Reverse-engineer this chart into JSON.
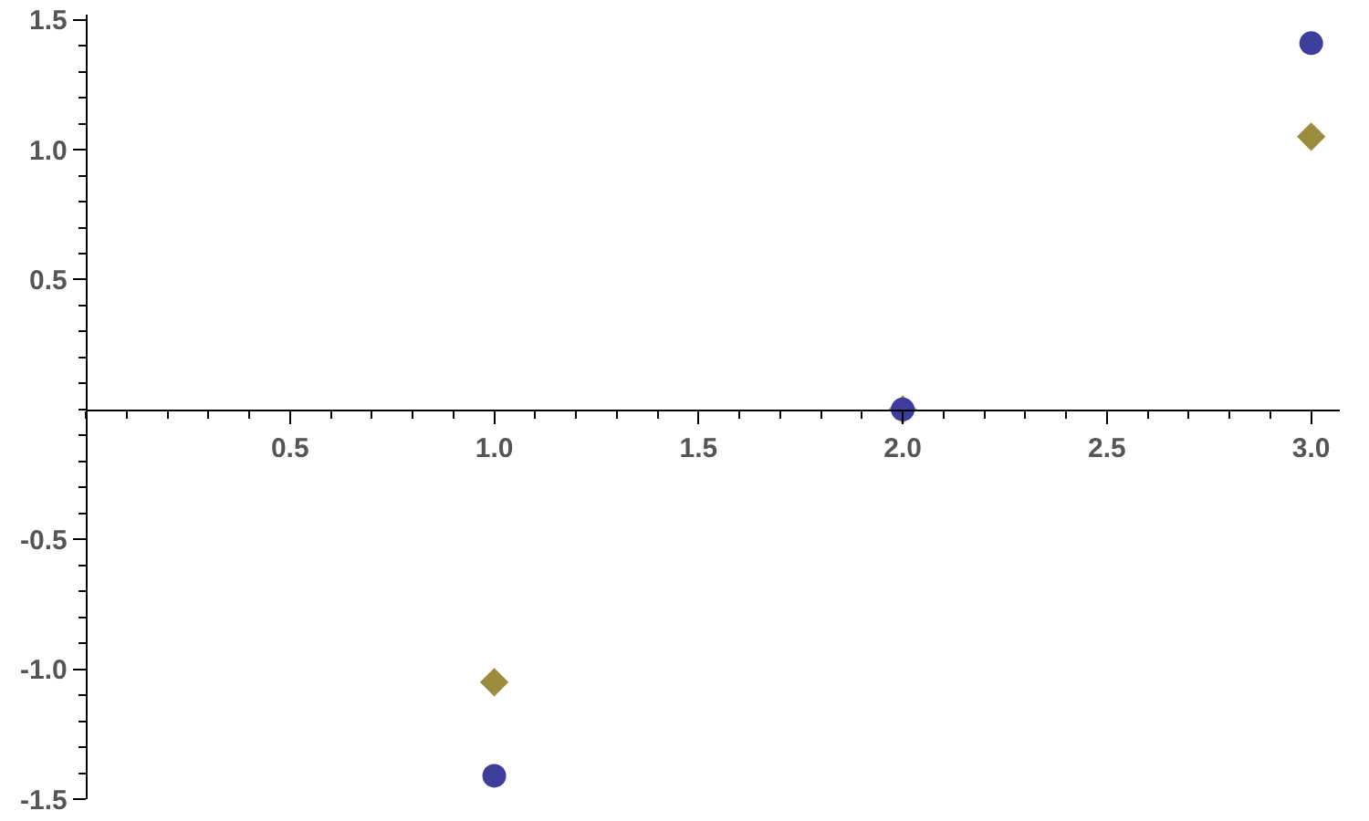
{
  "chart_data": {
    "type": "scatter",
    "x": [
      1,
      2,
      3
    ],
    "series": [
      {
        "color": "#9b8b3c",
        "marker": "diamond",
        "values": [
          -1.05,
          0,
          1.05
        ]
      },
      {
        "color": "#3d3d9c",
        "marker": "circle",
        "values": [
          -1.41,
          0,
          1.41
        ]
      }
    ],
    "xlim": [
      0,
      3.07
    ],
    "ylim": [
      -1.5,
      1.52
    ],
    "xticks": [
      0.5,
      {
        "value": 1,
        "label": "1.0"
      },
      1.5,
      {
        "value": 2,
        "label": "2.0"
      },
      2.5,
      {
        "value": 3,
        "label": "3.0"
      }
    ],
    "yticks": [
      -1.5,
      {
        "value": -1,
        "label": "-1.0"
      },
      -0.5,
      0.5,
      {
        "value": 1,
        "label": "1.0"
      },
      1.5
    ],
    "grid": false
  }
}
